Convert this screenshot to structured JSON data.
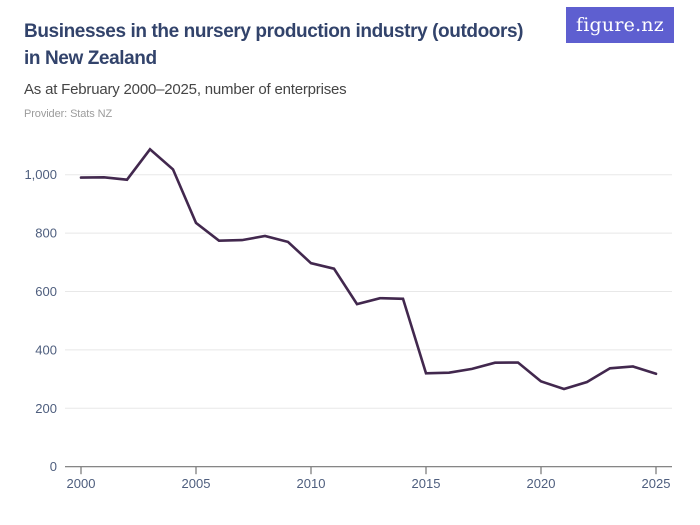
{
  "header": {
    "title_line1": "Businesses in the nursery production industry (outdoors)",
    "title_line2": "in New Zealand",
    "subtitle": "As at February 2000–2025, number of enterprises",
    "provider": "Provider: Stats NZ",
    "logo_text": "figure.nz"
  },
  "colors": {
    "logo_bg": "#5e5fd0",
    "title": "#32436b",
    "subtitle": "#454545",
    "provider": "#9c9c9c",
    "line": "#42284e",
    "grid": "#e8e8e8",
    "axis": "#747474",
    "tick_label": "#4e5e7e"
  },
  "chart_data": {
    "type": "line",
    "title": "Businesses in the nursery production industry (outdoors) in New Zealand",
    "subtitle": "As at February 2000-2025, number of enterprises",
    "xlabel": "",
    "ylabel": "number of enterprises",
    "x": [
      2000,
      2001,
      2002,
      2003,
      2004,
      2005,
      2006,
      2007,
      2008,
      2009,
      2010,
      2011,
      2012,
      2013,
      2014,
      2015,
      2016,
      2017,
      2018,
      2019,
      2020,
      2021,
      2022,
      2023,
      2024,
      2025
    ],
    "series": [
      {
        "name": "Number of enterprises",
        "values": [
          990,
          991,
          983,
          1087,
          1018,
          835,
          774,
          776,
          790,
          770,
          697,
          678,
          557,
          577,
          575,
          320,
          322,
          335,
          356,
          357,
          292,
          266,
          290,
          337,
          343,
          318
        ]
      }
    ],
    "xlim": [
      2000,
      2025
    ],
    "ylim": [
      0,
      1100
    ],
    "x_ticks": [
      2000,
      2005,
      2010,
      2015,
      2020,
      2025
    ],
    "x_tick_labels": [
      "2000",
      "2005",
      "2010",
      "2015",
      "2020",
      "2025"
    ],
    "y_ticks": [
      0,
      200,
      400,
      600,
      800,
      1000
    ],
    "y_tick_labels": [
      "0",
      "200",
      "400",
      "600",
      "800",
      "1,000"
    ],
    "grid": "horizontal",
    "legend": "none"
  }
}
